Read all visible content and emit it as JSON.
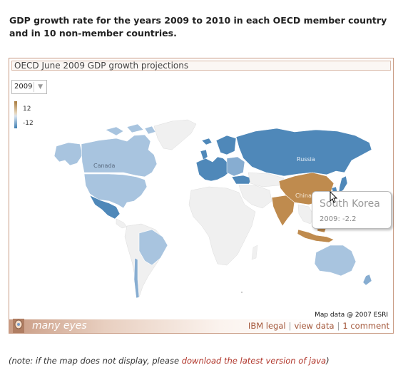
{
  "page": {
    "heading": "GDP growth rate for the years 2009 to 2010 in each OECD member country and in 10 non-member countries."
  },
  "panel": {
    "title": "OECD June 2009 GDP growth projections",
    "year_select": {
      "selected": "2009"
    },
    "legend": {
      "max_label": "12",
      "min_label": "-12",
      "colors": {
        "high": "#a87a3c",
        "low": "#3f7fb2",
        "mid": "#f2f2f2"
      }
    }
  },
  "map": {
    "labels": {
      "canada": "Canada",
      "russia": "Russia",
      "china": "China"
    },
    "colors": {
      "no_data": "#f0f0f0",
      "light_blue": "#a8c4df",
      "mid_blue": "#87add1",
      "dark_blue": "#4f88b9",
      "tan": "#bf8b4e",
      "dark_tan": "#9a6c35"
    }
  },
  "tooltip": {
    "title": "South Korea",
    "value_text": "2009: -2.2"
  },
  "credit": "Map data @ 2007 ESRI",
  "footer": {
    "logo_text": "many eyes",
    "links": {
      "legal": "IBM legal",
      "view_data": "view data",
      "comment": "1 comment"
    }
  },
  "note": {
    "prefix": "(note: if the map does not display, please ",
    "link": "download the latest version of java",
    "suffix": ")"
  }
}
